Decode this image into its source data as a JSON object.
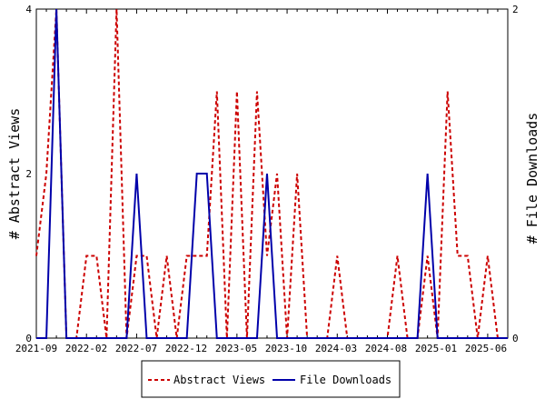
{
  "chart_data": {
    "type": "line",
    "title": "",
    "xlabel": "",
    "ylabel_left": "# Abstract Views",
    "ylabel_right": "# File Downloads",
    "ylim_left": [
      0,
      4
    ],
    "ylim_right": [
      0,
      2
    ],
    "yticks_left": [
      "0",
      "2",
      "4"
    ],
    "yticks_right": [
      "0",
      "1",
      "2"
    ],
    "x_tick_labels": [
      "2021-09",
      "2022-02",
      "2022-07",
      "2022-12",
      "2023-05",
      "2023-10",
      "2024-03",
      "2024-08",
      "2025-01",
      "2025-06"
    ],
    "grid": false,
    "legend_position": "bottom",
    "series": [
      {
        "name": "Abstract Views",
        "axis": "left",
        "color": "#cc0000",
        "style": "dashed",
        "x": [
          "2021-09",
          "2021-10",
          "2021-11",
          "2021-12",
          "2022-01",
          "2022-02",
          "2022-03",
          "2022-04",
          "2022-05",
          "2022-06",
          "2022-07",
          "2022-08",
          "2022-09",
          "2022-10",
          "2022-11",
          "2022-12",
          "2023-01",
          "2023-02",
          "2023-03",
          "2023-04",
          "2023-05",
          "2023-06",
          "2023-07",
          "2023-08",
          "2023-09",
          "2023-10",
          "2023-11",
          "2023-12",
          "2024-01",
          "2024-02",
          "2024-03",
          "2024-04",
          "2024-05",
          "2024-06",
          "2024-07",
          "2024-08",
          "2024-09",
          "2024-10",
          "2024-11",
          "2024-12",
          "2025-01",
          "2025-02",
          "2025-03",
          "2025-04",
          "2025-05",
          "2025-06",
          "2025-07",
          "2025-08"
        ],
        "values": [
          1,
          2,
          4,
          0,
          0,
          1,
          1,
          0,
          4,
          0,
          1,
          1,
          0,
          1,
          0,
          1,
          1,
          1,
          3,
          0,
          3,
          0,
          3,
          1,
          2,
          0,
          2,
          0,
          0,
          0,
          1,
          0,
          0,
          0,
          0,
          0,
          1,
          0,
          0,
          1,
          0,
          3,
          1,
          1,
          0,
          1,
          0,
          0
        ]
      },
      {
        "name": "File Downloads",
        "axis": "right",
        "color": "#0000aa",
        "style": "solid",
        "x": [
          "2021-09",
          "2021-10",
          "2021-11",
          "2021-12",
          "2022-01",
          "2022-02",
          "2022-03",
          "2022-04",
          "2022-05",
          "2022-06",
          "2022-07",
          "2022-08",
          "2022-09",
          "2022-10",
          "2022-11",
          "2022-12",
          "2023-01",
          "2023-02",
          "2023-03",
          "2023-04",
          "2023-05",
          "2023-06",
          "2023-07",
          "2023-08",
          "2023-09",
          "2023-10",
          "2023-11",
          "2023-12",
          "2024-01",
          "2024-02",
          "2024-03",
          "2024-04",
          "2024-05",
          "2024-06",
          "2024-07",
          "2024-08",
          "2024-09",
          "2024-10",
          "2024-11",
          "2024-12",
          "2025-01",
          "2025-02",
          "2025-03",
          "2025-04",
          "2025-05",
          "2025-06",
          "2025-07",
          "2025-08"
        ],
        "values": [
          0,
          0,
          2,
          0,
          0,
          0,
          0,
          0,
          0,
          0,
          1,
          0,
          0,
          0,
          0,
          0,
          1,
          1,
          0,
          0,
          0,
          0,
          0,
          1,
          0,
          0,
          0,
          0,
          0,
          0,
          0,
          0,
          0,
          0,
          0,
          0,
          0,
          0,
          0,
          1,
          0,
          0,
          0,
          0,
          0,
          0,
          0,
          0
        ]
      }
    ]
  }
}
